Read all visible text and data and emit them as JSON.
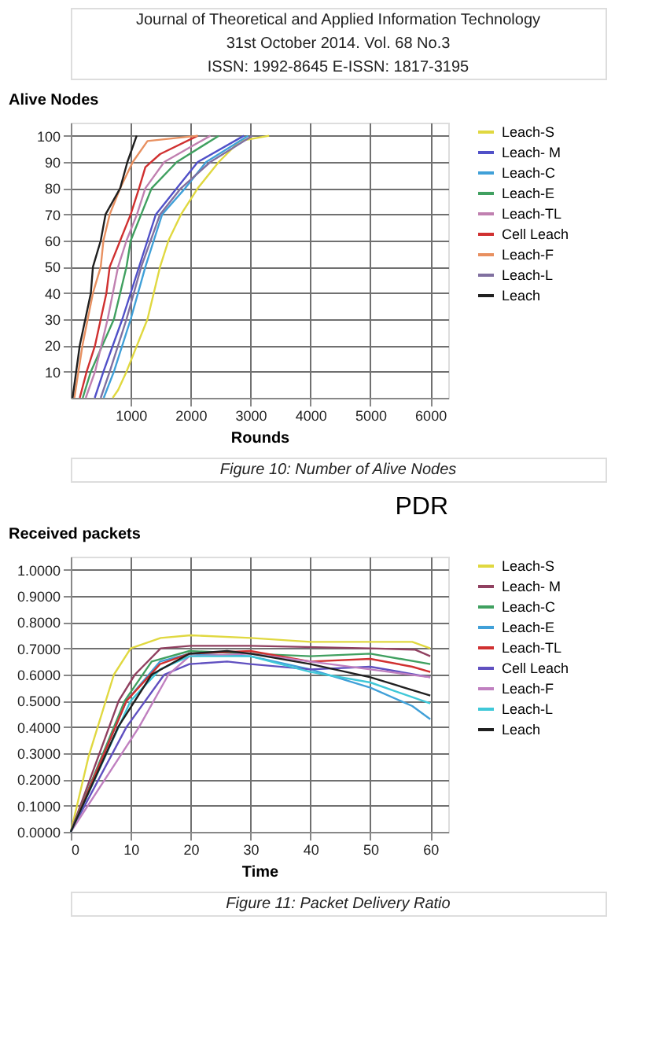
{
  "chart_data": [
    {
      "type": "line",
      "xlabel": "Rounds",
      "ylabel": "Alive Nodes",
      "legend": "right",
      "grid": true,
      "annotations": [
        "Journal of Theoretical and Applied Information Technology",
        "31st October 2014. Vol. 68 No.3",
        "ISSN: 1992-8645          E-ISSN: 1817-3195",
        "Figure 10: Number of Alive Nodes"
      ],
      "xlim": [
        0,
        6300
      ],
      "xticks": [
        1000,
        2000,
        3000,
        4000,
        5000,
        6000
      ],
      "ylim": [
        0,
        105
      ],
      "yticks": [
        10,
        20,
        30,
        40,
        50,
        60,
        70,
        80,
        90,
        100
      ],
      "series": [
        {
          "name": "Leach-S",
          "color": "#e0d840",
          "x": [
            700,
            790,
            930,
            1280,
            1385,
            1490,
            1630,
            1840,
            2120,
            2470,
            2820,
            3310
          ],
          "values": [
            0,
            3,
            10,
            30,
            40,
            50,
            60,
            70,
            80,
            90,
            98,
            100
          ]
        },
        {
          "name": "Leach- M",
          "color": "#5050c8",
          "x": [
            400,
            545,
            860,
            1140,
            1280,
            1420,
            1770,
            2120,
            2890
          ],
          "values": [
            0,
            10,
            30,
            50,
            60,
            70,
            80,
            90,
            100
          ]
        },
        {
          "name": "Leach-C",
          "color": "#40a0d8",
          "x": [
            550,
            720,
            1000,
            1245,
            1385,
            1525,
            1910,
            2260,
            2960
          ],
          "values": [
            0,
            10,
            30,
            50,
            60,
            70,
            80,
            90,
            100
          ]
        },
        {
          "name": "Leach-E",
          "color": "#40a060",
          "x": [
            200,
            335,
            720,
            930,
            1000,
            1175,
            1350,
            1770,
            2470
          ],
          "values": [
            0,
            10,
            30,
            50,
            60,
            70,
            80,
            90,
            100
          ]
        },
        {
          "name": "Leach-TL",
          "color": "#c080b0",
          "x": [
            250,
            405,
            615,
            790,
            930,
            1105,
            1245,
            1560,
            2330
          ],
          "values": [
            0,
            10,
            30,
            50,
            60,
            70,
            80,
            90,
            100
          ]
        },
        {
          "name": "Cell Leach",
          "color": "#d03030",
          "x": [
            150,
            265,
            405,
            595,
            650,
            825,
            1000,
            1140,
            1245,
            1490,
            2120
          ],
          "values": [
            0,
            10,
            20,
            40,
            50,
            60,
            70,
            80,
            88,
            93,
            100
          ]
        },
        {
          "name": "Leach-F",
          "color": "#e89060",
          "x": [
            60,
            195,
            370,
            500,
            545,
            650,
            825,
            1035,
            1280,
            2120
          ],
          "values": [
            0,
            20,
            40,
            50,
            60,
            70,
            80,
            90,
            98,
            100
          ]
        },
        {
          "name": "Leach-L",
          "color": "#8070a0",
          "x": [
            500,
            650,
            930,
            1175,
            1490,
            1840,
            2330,
            3030
          ],
          "values": [
            0,
            10,
            30,
            50,
            70,
            80,
            90,
            100
          ]
        },
        {
          "name": "Leach",
          "color": "#202020",
          "x": [
            30,
            150,
            335,
            370,
            500,
            580,
            825,
            945,
            1100
          ],
          "values": [
            0,
            20,
            40,
            50,
            60,
            70,
            80,
            90,
            100
          ]
        }
      ]
    },
    {
      "type": "line",
      "title": "PDR",
      "xlabel": "Time",
      "ylabel": "Received packets",
      "legend": "right",
      "grid": true,
      "annotations": [
        "Figure 11: Packet Delivery Ratio"
      ],
      "xlim": [
        0,
        63
      ],
      "xticks": [
        0,
        10,
        20,
        30,
        40,
        50,
        60
      ],
      "ylim": [
        0,
        1.05
      ],
      "yticks": [
        {
          "value": 0,
          "label": "0.0000"
        },
        {
          "value": 0.1,
          "label": "0.1000"
        },
        {
          "value": 0.2,
          "label": "0.2000"
        },
        {
          "value": 0.3,
          "label": "0.3000"
        },
        {
          "value": 0.4,
          "label": "0.4000"
        },
        {
          "value": 0.5,
          "label": "0.5000"
        },
        {
          "value": 0.6,
          "label": "0.6000"
        },
        {
          "value": 0.7,
          "label": "0.7000"
        },
        {
          "value": 0.8,
          "label": "0.8000"
        },
        {
          "value": 0.9,
          "label": "0.9000"
        },
        {
          "value": 1,
          "label": "1.0000"
        }
      ],
      "series": [
        {
          "name": "Leach-S",
          "color": "#e0d840",
          "x": [
            0,
            3,
            7.2,
            10,
            15,
            20,
            30,
            40,
            57,
            60
          ],
          "values": [
            0,
            0.29,
            0.6,
            0.7,
            0.74,
            0.75,
            0.74,
            0.725,
            0.725,
            0.7
          ]
        },
        {
          "name": "Leach- M",
          "color": "#904060",
          "x": [
            0,
            8,
            10.7,
            15,
            20,
            30,
            50,
            57.5,
            60
          ],
          "values": [
            0,
            0.5,
            0.6,
            0.7,
            0.71,
            0.71,
            0.7,
            0.695,
            0.67
          ]
        },
        {
          "name": "Leach-C",
          "color": "#40a060",
          "x": [
            0,
            9,
            13.5,
            19.8,
            30,
            40,
            50,
            60
          ],
          "values": [
            0,
            0.5,
            0.65,
            0.69,
            0.68,
            0.67,
            0.68,
            0.64
          ]
        },
        {
          "name": "Leach-E",
          "color": "#40a0d8",
          "x": [
            0,
            9.3,
            14.9,
            19.8,
            30,
            40,
            50,
            57,
            60
          ],
          "values": [
            0,
            0.5,
            0.65,
            0.68,
            0.67,
            0.62,
            0.55,
            0.48,
            0.43
          ]
        },
        {
          "name": "Leach-TL",
          "color": "#d03030",
          "x": [
            0,
            9.3,
            14.9,
            19.8,
            30,
            40,
            50,
            57,
            60
          ],
          "values": [
            0,
            0.5,
            0.64,
            0.68,
            0.69,
            0.65,
            0.66,
            0.63,
            0.61
          ]
        },
        {
          "name": "Cell Leach",
          "color": "#6050c0",
          "x": [
            0,
            9.3,
            15.6,
            19.8,
            26.1,
            30,
            40,
            50,
            60
          ],
          "values": [
            0,
            0.4,
            0.6,
            0.64,
            0.65,
            0.64,
            0.62,
            0.63,
            0.59
          ]
        },
        {
          "name": "Leach-F",
          "color": "#c080c0",
          "x": [
            0,
            11.4,
            16.3,
            19.8,
            30,
            40,
            50,
            60
          ],
          "values": [
            0,
            0.4,
            0.6,
            0.67,
            0.68,
            0.65,
            0.62,
            0.59
          ]
        },
        {
          "name": "Leach-L",
          "color": "#40c8d8",
          "x": [
            0,
            10,
            14.9,
            19.8,
            30,
            40,
            50,
            60
          ],
          "values": [
            0,
            0.5,
            0.62,
            0.67,
            0.67,
            0.61,
            0.57,
            0.49
          ]
        },
        {
          "name": "Leach",
          "color": "#202020",
          "x": [
            0,
            7.9,
            13.5,
            19.8,
            26.1,
            30,
            40,
            50,
            60
          ],
          "values": [
            0,
            0.4,
            0.6,
            0.68,
            0.69,
            0.68,
            0.64,
            0.59,
            0.52
          ]
        }
      ]
    }
  ]
}
